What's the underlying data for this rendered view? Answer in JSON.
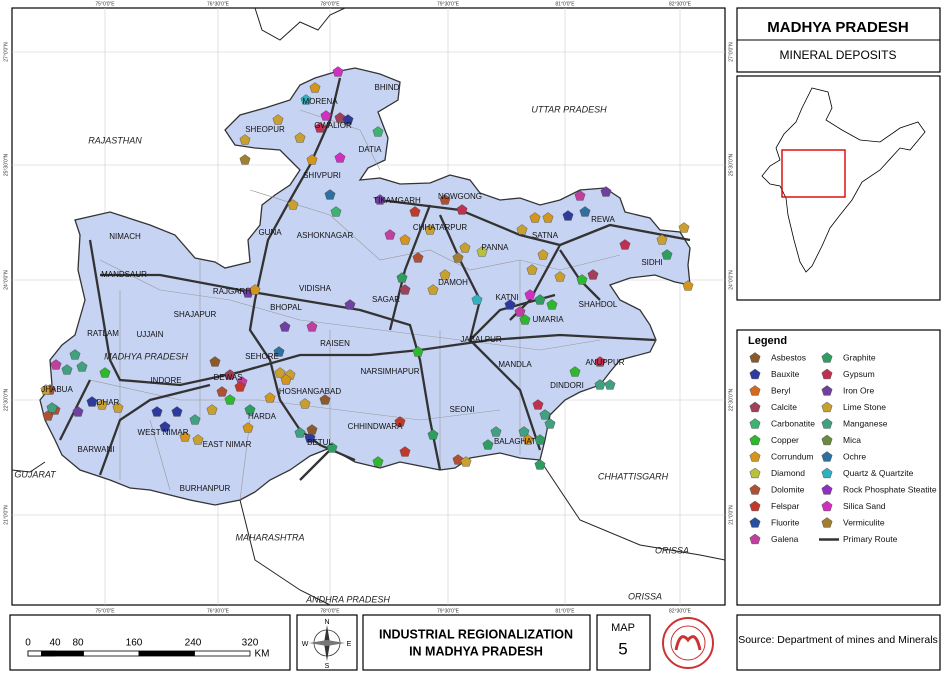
{
  "header": {
    "title": "MADHYA PRADESH",
    "subtitle": "MINERAL DEPOSITS"
  },
  "legend": {
    "title": "Legend",
    "items": [
      {
        "label": "Asbestos",
        "color": "#8b5a2b"
      },
      {
        "label": "Bauxite",
        "color": "#2e3a9e"
      },
      {
        "label": "Beryl",
        "color": "#d2691e"
      },
      {
        "label": "Calcite",
        "color": "#a0405a"
      },
      {
        "label": "Carbonatite",
        "color": "#3cb371"
      },
      {
        "label": "Copper",
        "color": "#2eb82e"
      },
      {
        "label": "Corrundum",
        "color": "#d4961a"
      },
      {
        "label": "Diamond",
        "color": "#b8c040"
      },
      {
        "label": "Dolomite",
        "color": "#b05030"
      },
      {
        "label": "Felspar",
        "color": "#c0392b"
      },
      {
        "label": "Fluorite",
        "color": "#2850a0"
      },
      {
        "label": "Galena",
        "color": "#c040a0"
      },
      {
        "label": "Graphite",
        "color": "#2e9e60"
      },
      {
        "label": "Gypsum",
        "color": "#c03050"
      },
      {
        "label": "Iron Ore",
        "color": "#7040a0"
      },
      {
        "label": "Lime Stone",
        "color": "#c8a030"
      },
      {
        "label": "Manganese",
        "color": "#40a080"
      },
      {
        "label": "Mica",
        "color": "#6a8a40"
      },
      {
        "label": "Ochre",
        "color": "#3070a0"
      },
      {
        "label": "Quartz & Quartzite",
        "color": "#30b0c0"
      },
      {
        "label": "Rock Phosphate Steatite",
        "color": "#9030c0"
      },
      {
        "label": "Silica Sand",
        "color": "#d030c0"
      },
      {
        "label": "Vermiculite",
        "color": "#a08030"
      },
      {
        "label": "Primary Route",
        "color": "#333333"
      }
    ]
  },
  "regions": [
    "RAJASTHAN",
    "UTTAR PRADESH",
    "CHHATTISGARH",
    "MAHARASHTRA",
    "ANDHRA PRADESH",
    "ORISSA",
    "ORISSA",
    "GUJARAT",
    "MADHYA PRADESH"
  ],
  "districts": [
    "BHIND",
    "MORENA",
    "GWALIOR",
    "SHEOPUR",
    "DATIA",
    "SHIVPURI",
    "TIKAMGARH",
    "NOWGONG",
    "CHHATARPUR",
    "PANNA",
    "SATNA",
    "REWA",
    "SIDHI",
    "NIMACH",
    "GUNA",
    "ASHOKNAGAR",
    "MANDSAUR",
    "RAJGARH",
    "VIDISHA",
    "SAGAR",
    "DAMOH",
    "KATNI",
    "SHAHDOL",
    "SHAJAPUR",
    "BHOPAL",
    "UMARIA",
    "RATLAM",
    "UJJAIN",
    "RAISEN",
    "JABALPUR",
    "ANUPPUR",
    "SEHORE",
    "NARSIMHAPUR",
    "MANDLA",
    "DINDORI",
    "INDORE",
    "DEWAS",
    "HOSHANGABAD",
    "JHABUA",
    "DHAR",
    "HARDA",
    "SEONI",
    "WEST NIMAR",
    "CHHINDWARA",
    "BALAGHAT",
    "EAST NIMAR",
    "BARWANI",
    "BETUL",
    "BURHANPUR"
  ],
  "grid": {
    "longitudes": [
      "75°0'0\"E",
      "76°30'0\"E",
      "78°0'0\"E",
      "79°30'0\"E",
      "81°0'0\"E",
      "82°30'0\"E"
    ],
    "latitudes": [
      "27°0'0\"N",
      "25°30'0\"N",
      "24°0'0\"N",
      "22°30'0\"N",
      "21°0'0\"N"
    ]
  },
  "scale": {
    "ticks": [
      "0",
      "40",
      "80",
      "160",
      "240",
      "320"
    ],
    "unit": "KM"
  },
  "compass": {
    "n": "N",
    "s": "S",
    "e": "E",
    "w": "W"
  },
  "footer": {
    "title_lines": [
      "INDUSTRIAL REGIONALIZATION",
      "IN MADHYA PRADESH"
    ],
    "map_label": "MAP",
    "map_number": "5",
    "source": "Source: Department of mines and Minerals"
  }
}
